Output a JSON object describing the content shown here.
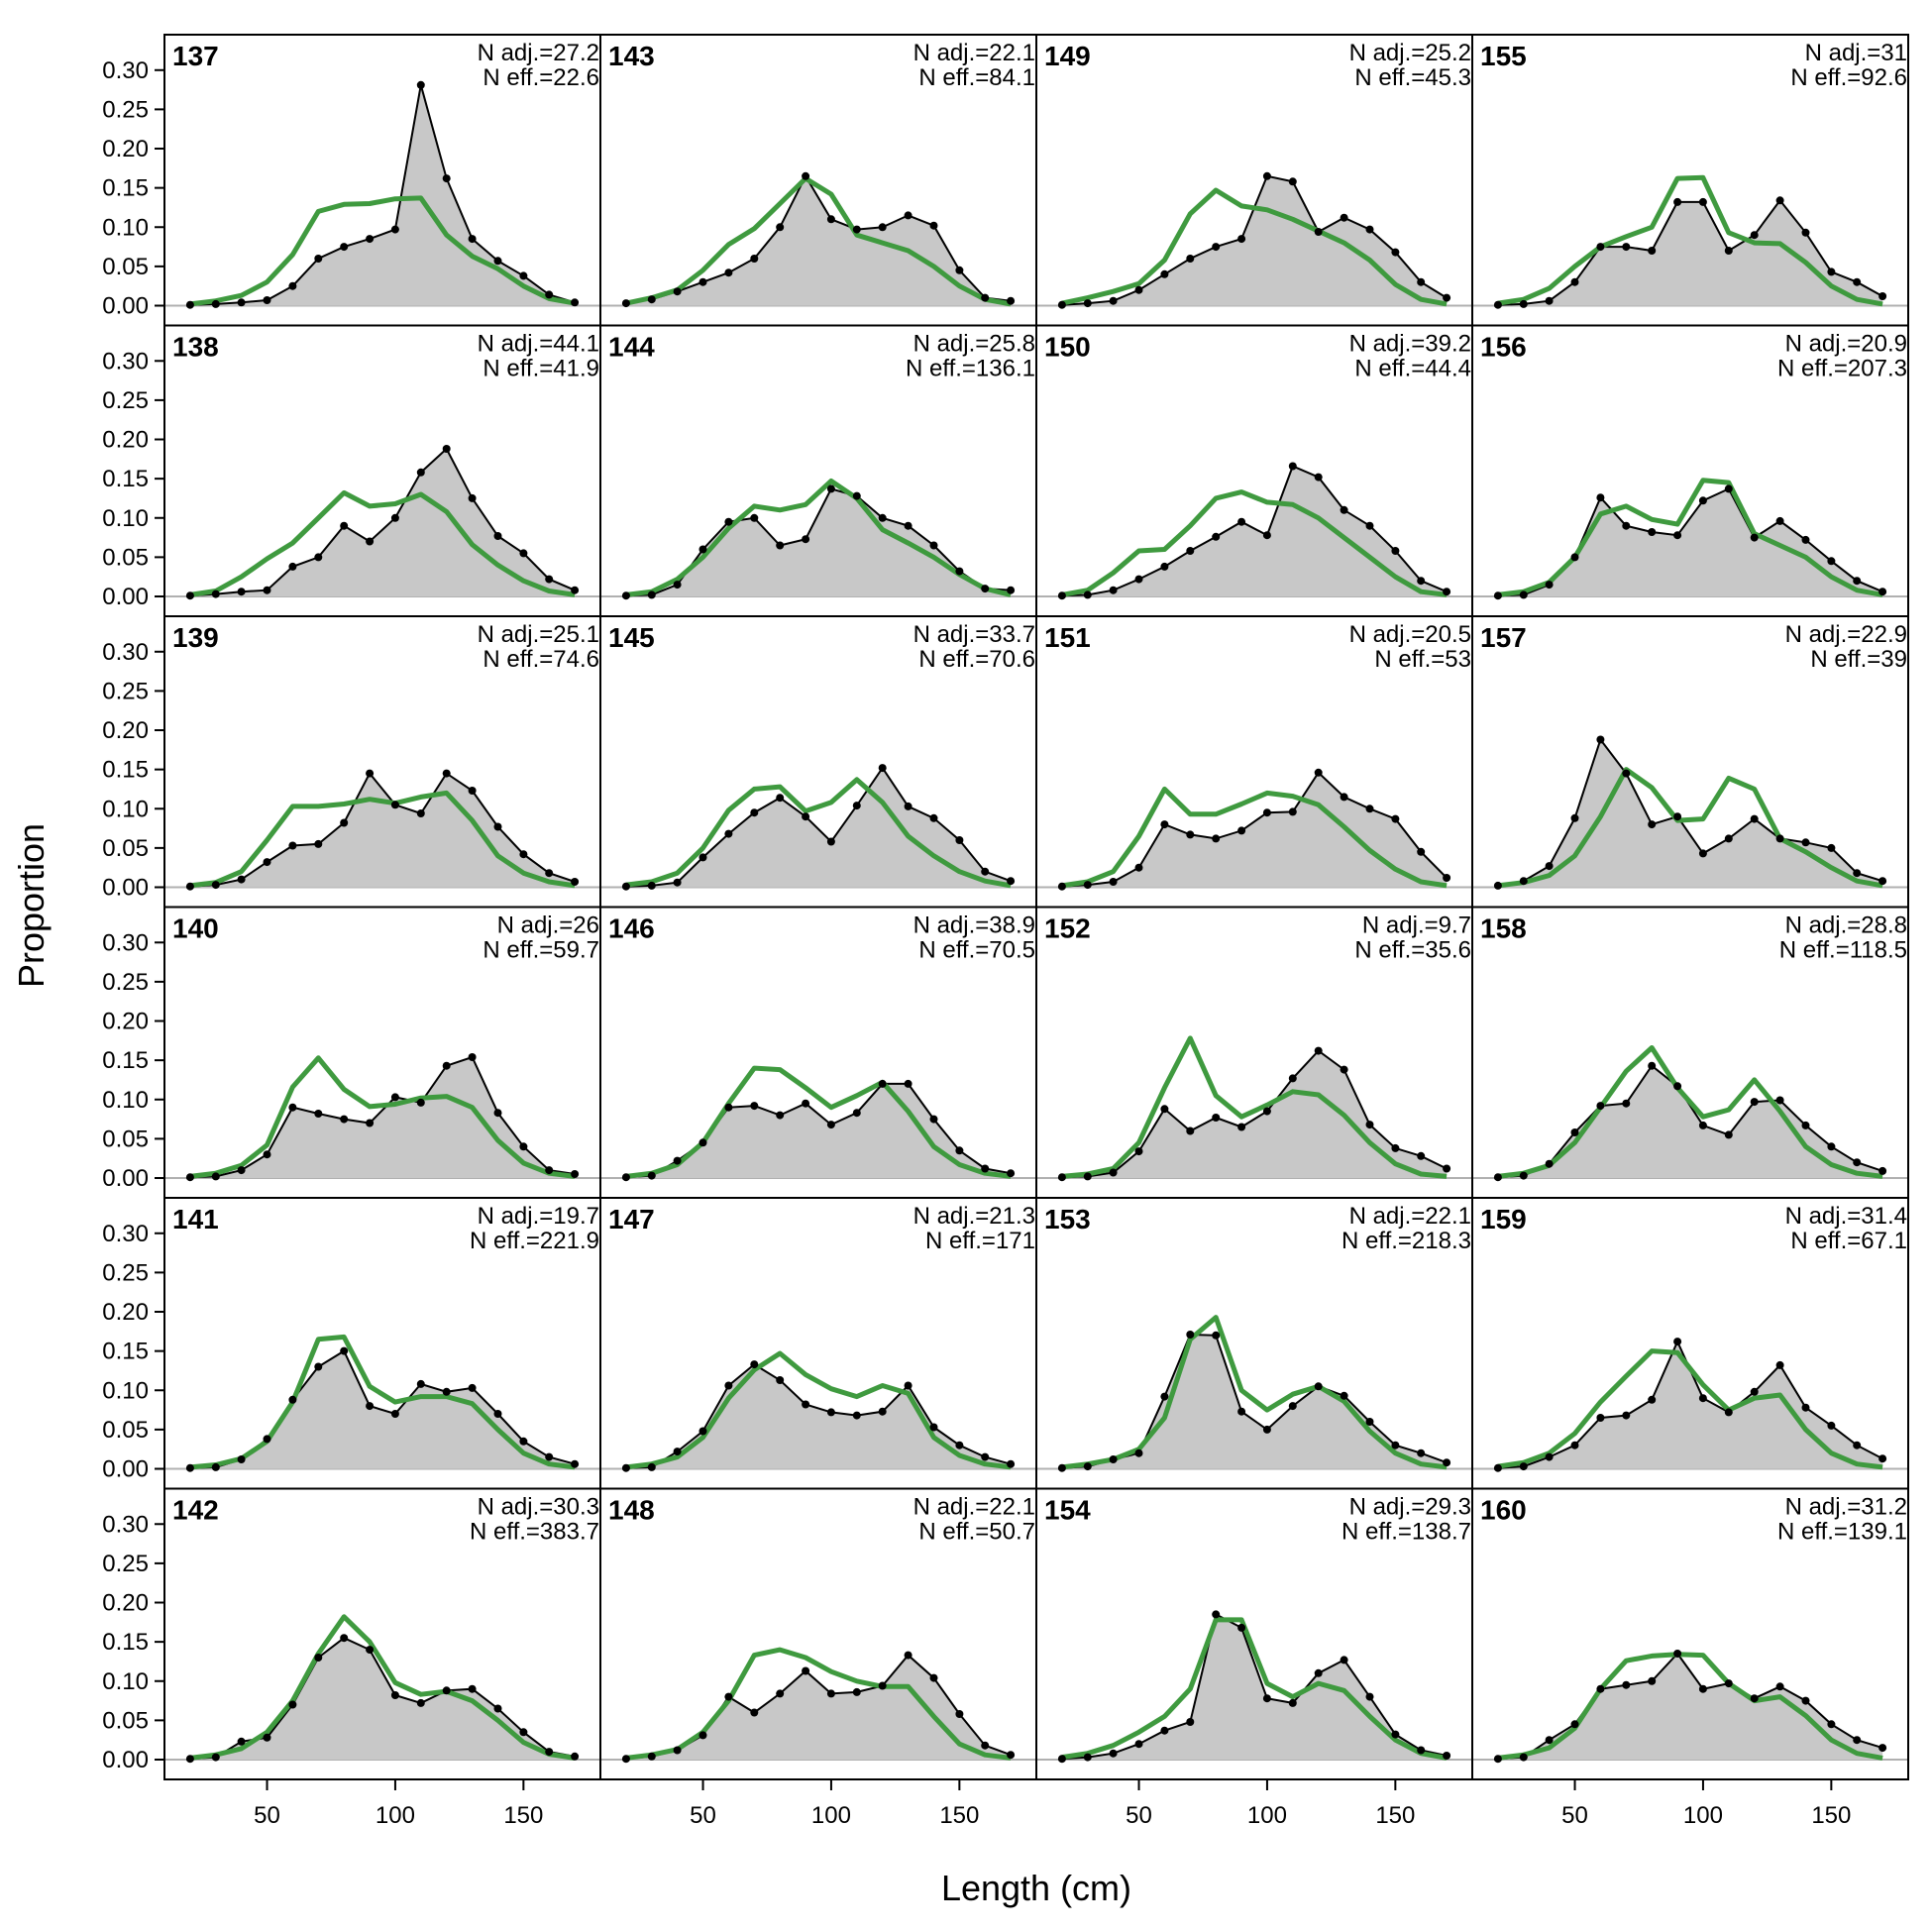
{
  "chart_data": {
    "type": "area",
    "xlabel": "Length (cm)",
    "ylabel": "Proportion",
    "xlim": [
      10,
      180
    ],
    "ylim": [
      0,
      0.33
    ],
    "xticks": [
      50,
      100,
      150
    ],
    "yticks": [
      0.0,
      0.05,
      0.1,
      0.15,
      0.2,
      0.25,
      0.3
    ],
    "ytick_labels": [
      "0.00",
      "0.05",
      "0.10",
      "0.15",
      "0.20",
      "0.25",
      "0.30"
    ],
    "x": [
      20,
      30,
      40,
      50,
      60,
      70,
      80,
      90,
      100,
      110,
      120,
      130,
      140,
      150,
      160,
      170
    ],
    "layout": {
      "rows": 6,
      "cols": 4,
      "order": "column-major"
    },
    "colors": {
      "observed_fill": "#c8c8c8",
      "observed_line": "#000000",
      "expected_line": "#3f9a3f",
      "zero_line": "#b0b0b0"
    },
    "panels": [
      {
        "id": "137",
        "n_adj": "N adj.=27.2",
        "n_eff": "N eff.=22.6",
        "observed": [
          0.001,
          0.002,
          0.004,
          0.007,
          0.025,
          0.06,
          0.075,
          0.085,
          0.097,
          0.281,
          0.162,
          0.085,
          0.057,
          0.038,
          0.014,
          0.004
        ],
        "expected": [
          0.002,
          0.006,
          0.013,
          0.03,
          0.065,
          0.12,
          0.129,
          0.13,
          0.136,
          0.137,
          0.09,
          0.063,
          0.047,
          0.025,
          0.009,
          0.003
        ]
      },
      {
        "id": "138",
        "n_adj": "N adj.=44.1",
        "n_eff": "N eff.=41.9",
        "observed": [
          0.001,
          0.003,
          0.006,
          0.008,
          0.038,
          0.05,
          0.09,
          0.07,
          0.1,
          0.158,
          0.188,
          0.125,
          0.077,
          0.055,
          0.022,
          0.008
        ],
        "expected": [
          0.002,
          0.007,
          0.025,
          0.048,
          0.068,
          0.1,
          0.132,
          0.115,
          0.118,
          0.13,
          0.108,
          0.066,
          0.04,
          0.02,
          0.007,
          0.002
        ]
      },
      {
        "id": "139",
        "n_adj": "N adj.=25.1",
        "n_eff": "N eff.=74.6",
        "observed": [
          0.001,
          0.003,
          0.01,
          0.032,
          0.053,
          0.055,
          0.082,
          0.145,
          0.105,
          0.094,
          0.145,
          0.123,
          0.077,
          0.042,
          0.018,
          0.007
        ],
        "expected": [
          0.002,
          0.006,
          0.02,
          0.06,
          0.103,
          0.103,
          0.106,
          0.112,
          0.107,
          0.115,
          0.12,
          0.085,
          0.04,
          0.018,
          0.007,
          0.002
        ]
      },
      {
        "id": "140",
        "n_adj": "N adj.=26",
        "n_eff": "N eff.=59.7",
        "observed": [
          0.001,
          0.002,
          0.01,
          0.03,
          0.09,
          0.082,
          0.075,
          0.07,
          0.103,
          0.096,
          0.143,
          0.154,
          0.083,
          0.04,
          0.01,
          0.005
        ],
        "expected": [
          0.002,
          0.006,
          0.016,
          0.042,
          0.116,
          0.153,
          0.113,
          0.091,
          0.094,
          0.102,
          0.104,
          0.09,
          0.048,
          0.019,
          0.006,
          0.002
        ]
      },
      {
        "id": "141",
        "n_adj": "N adj.=19.7",
        "n_eff": "N eff.=221.9",
        "observed": [
          0.001,
          0.002,
          0.012,
          0.038,
          0.088,
          0.13,
          0.15,
          0.08,
          0.07,
          0.108,
          0.098,
          0.103,
          0.07,
          0.035,
          0.015,
          0.006
        ],
        "expected": [
          0.002,
          0.005,
          0.013,
          0.035,
          0.085,
          0.165,
          0.168,
          0.105,
          0.085,
          0.092,
          0.092,
          0.083,
          0.05,
          0.02,
          0.006,
          0.002
        ]
      },
      {
        "id": "142",
        "n_adj": "N adj.=30.3",
        "n_eff": "N eff.=383.7",
        "observed": [
          0.001,
          0.003,
          0.023,
          0.028,
          0.07,
          0.13,
          0.155,
          0.14,
          0.082,
          0.072,
          0.088,
          0.09,
          0.065,
          0.035,
          0.01,
          0.004
        ],
        "expected": [
          0.002,
          0.006,
          0.014,
          0.035,
          0.075,
          0.135,
          0.182,
          0.15,
          0.098,
          0.083,
          0.087,
          0.075,
          0.05,
          0.022,
          0.007,
          0.002
        ]
      },
      {
        "id": "143",
        "n_adj": "N adj.=22.1",
        "n_eff": "N eff.=84.1",
        "observed": [
          0.003,
          0.008,
          0.018,
          0.03,
          0.042,
          0.06,
          0.1,
          0.165,
          0.11,
          0.097,
          0.1,
          0.115,
          0.102,
          0.045,
          0.01,
          0.006
        ],
        "expected": [
          0.003,
          0.01,
          0.02,
          0.045,
          0.078,
          0.098,
          0.13,
          0.162,
          0.142,
          0.09,
          0.08,
          0.07,
          0.05,
          0.025,
          0.008,
          0.002
        ]
      },
      {
        "id": "144",
        "n_adj": "N adj.=25.8",
        "n_eff": "N eff.=136.1",
        "observed": [
          0.001,
          0.002,
          0.015,
          0.06,
          0.095,
          0.1,
          0.065,
          0.073,
          0.137,
          0.128,
          0.1,
          0.09,
          0.065,
          0.032,
          0.01,
          0.008
        ],
        "expected": [
          0.002,
          0.006,
          0.022,
          0.05,
          0.087,
          0.115,
          0.11,
          0.117,
          0.147,
          0.125,
          0.085,
          0.068,
          0.05,
          0.028,
          0.01,
          0.002
        ]
      },
      {
        "id": "145",
        "n_adj": "N adj.=33.7",
        "n_eff": "N eff.=70.6",
        "observed": [
          0.001,
          0.002,
          0.006,
          0.038,
          0.068,
          0.095,
          0.114,
          0.09,
          0.058,
          0.104,
          0.152,
          0.103,
          0.088,
          0.06,
          0.02,
          0.008
        ],
        "expected": [
          0.003,
          0.007,
          0.018,
          0.05,
          0.098,
          0.125,
          0.128,
          0.097,
          0.108,
          0.137,
          0.108,
          0.065,
          0.04,
          0.02,
          0.008,
          0.002
        ]
      },
      {
        "id": "146",
        "n_adj": "N adj.=38.9",
        "n_eff": "N eff.=70.5",
        "observed": [
          0.001,
          0.003,
          0.022,
          0.045,
          0.09,
          0.092,
          0.08,
          0.095,
          0.068,
          0.083,
          0.12,
          0.12,
          0.075,
          0.035,
          0.012,
          0.006
        ],
        "expected": [
          0.002,
          0.006,
          0.017,
          0.045,
          0.095,
          0.14,
          0.138,
          0.115,
          0.09,
          0.105,
          0.122,
          0.085,
          0.04,
          0.017,
          0.006,
          0.002
        ]
      },
      {
        "id": "147",
        "n_adj": "N adj.=21.3",
        "n_eff": "N eff.=171",
        "observed": [
          0.001,
          0.002,
          0.022,
          0.048,
          0.106,
          0.133,
          0.113,
          0.082,
          0.072,
          0.068,
          0.073,
          0.106,
          0.053,
          0.03,
          0.015,
          0.006
        ],
        "expected": [
          0.002,
          0.006,
          0.015,
          0.04,
          0.09,
          0.126,
          0.147,
          0.12,
          0.102,
          0.092,
          0.106,
          0.096,
          0.04,
          0.017,
          0.006,
          0.002
        ]
      },
      {
        "id": "148",
        "n_adj": "N adj.=22.1",
        "n_eff": "N eff.=50.7",
        "observed": [
          0.001,
          0.004,
          0.012,
          0.031,
          0.08,
          0.06,
          0.084,
          0.113,
          0.084,
          0.086,
          0.094,
          0.133,
          0.104,
          0.058,
          0.018,
          0.006
        ],
        "expected": [
          0.002,
          0.006,
          0.013,
          0.035,
          0.075,
          0.133,
          0.14,
          0.13,
          0.112,
          0.1,
          0.093,
          0.093,
          0.055,
          0.02,
          0.006,
          0.002
        ]
      },
      {
        "id": "149",
        "n_adj": "N adj.=25.2",
        "n_eff": "N eff.=45.3",
        "observed": [
          0.001,
          0.003,
          0.006,
          0.02,
          0.04,
          0.06,
          0.075,
          0.085,
          0.165,
          0.158,
          0.094,
          0.112,
          0.097,
          0.068,
          0.03,
          0.01
        ],
        "expected": [
          0.003,
          0.01,
          0.018,
          0.028,
          0.058,
          0.117,
          0.147,
          0.127,
          0.122,
          0.11,
          0.095,
          0.08,
          0.058,
          0.027,
          0.008,
          0.002
        ]
      },
      {
        "id": "150",
        "n_adj": "N adj.=39.2",
        "n_eff": "N eff.=44.4",
        "observed": [
          0.001,
          0.002,
          0.008,
          0.022,
          0.038,
          0.058,
          0.076,
          0.095,
          0.078,
          0.166,
          0.152,
          0.11,
          0.09,
          0.058,
          0.02,
          0.006
        ],
        "expected": [
          0.002,
          0.008,
          0.03,
          0.058,
          0.06,
          0.09,
          0.125,
          0.133,
          0.12,
          0.117,
          0.1,
          0.075,
          0.05,
          0.025,
          0.006,
          0.002
        ]
      },
      {
        "id": "151",
        "n_adj": "N adj.=20.5",
        "n_eff": "N eff.=53",
        "observed": [
          0.001,
          0.003,
          0.007,
          0.025,
          0.08,
          0.067,
          0.062,
          0.072,
          0.095,
          0.096,
          0.146,
          0.115,
          0.1,
          0.087,
          0.045,
          0.012
        ],
        "expected": [
          0.002,
          0.007,
          0.02,
          0.065,
          0.125,
          0.093,
          0.093,
          0.106,
          0.12,
          0.116,
          0.105,
          0.077,
          0.047,
          0.023,
          0.007,
          0.002
        ]
      },
      {
        "id": "152",
        "n_adj": "N adj.=9.7",
        "n_eff": "N eff.=35.6",
        "observed": [
          0.001,
          0.002,
          0.007,
          0.034,
          0.088,
          0.06,
          0.077,
          0.065,
          0.085,
          0.127,
          0.162,
          0.138,
          0.068,
          0.038,
          0.028,
          0.012
        ],
        "expected": [
          0.002,
          0.005,
          0.012,
          0.045,
          0.115,
          0.178,
          0.105,
          0.078,
          0.093,
          0.11,
          0.106,
          0.08,
          0.045,
          0.018,
          0.005,
          0.002
        ]
      },
      {
        "id": "153",
        "n_adj": "N adj.=22.1",
        "n_eff": "N eff.=218.3",
        "observed": [
          0.001,
          0.003,
          0.012,
          0.02,
          0.092,
          0.171,
          0.17,
          0.073,
          0.05,
          0.08,
          0.105,
          0.093,
          0.06,
          0.03,
          0.02,
          0.008
        ],
        "expected": [
          0.002,
          0.006,
          0.012,
          0.025,
          0.065,
          0.165,
          0.193,
          0.1,
          0.075,
          0.095,
          0.105,
          0.086,
          0.048,
          0.02,
          0.006,
          0.002
        ]
      },
      {
        "id": "154",
        "n_adj": "N adj.=29.3",
        "n_eff": "N eff.=138.7",
        "observed": [
          0.001,
          0.003,
          0.008,
          0.02,
          0.037,
          0.048,
          0.185,
          0.168,
          0.078,
          0.072,
          0.11,
          0.127,
          0.08,
          0.032,
          0.012,
          0.005
        ],
        "expected": [
          0.003,
          0.008,
          0.018,
          0.035,
          0.055,
          0.09,
          0.178,
          0.178,
          0.097,
          0.08,
          0.097,
          0.088,
          0.055,
          0.025,
          0.008,
          0.002
        ]
      },
      {
        "id": "155",
        "n_adj": "N adj.=31",
        "n_eff": "N eff.=92.6",
        "observed": [
          0.001,
          0.002,
          0.006,
          0.03,
          0.075,
          0.075,
          0.07,
          0.132,
          0.132,
          0.07,
          0.09,
          0.134,
          0.093,
          0.043,
          0.03,
          0.012
        ],
        "expected": [
          0.003,
          0.008,
          0.022,
          0.05,
          0.075,
          0.088,
          0.1,
          0.162,
          0.163,
          0.093,
          0.08,
          0.079,
          0.055,
          0.025,
          0.008,
          0.002
        ]
      },
      {
        "id": "156",
        "n_adj": "N adj.=20.9",
        "n_eff": "N eff.=207.3",
        "observed": [
          0.001,
          0.002,
          0.015,
          0.05,
          0.126,
          0.09,
          0.082,
          0.078,
          0.122,
          0.137,
          0.075,
          0.096,
          0.072,
          0.045,
          0.02,
          0.006
        ],
        "expected": [
          0.002,
          0.006,
          0.018,
          0.05,
          0.105,
          0.115,
          0.098,
          0.092,
          0.148,
          0.145,
          0.08,
          0.065,
          0.05,
          0.025,
          0.008,
          0.002
        ]
      },
      {
        "id": "157",
        "n_adj": "N adj.=22.9",
        "n_eff": "N eff.=39",
        "observed": [
          0.002,
          0.008,
          0.027,
          0.088,
          0.188,
          0.145,
          0.08,
          0.09,
          0.043,
          0.062,
          0.087,
          0.062,
          0.057,
          0.05,
          0.018,
          0.008
        ],
        "expected": [
          0.002,
          0.006,
          0.015,
          0.04,
          0.09,
          0.15,
          0.127,
          0.085,
          0.087,
          0.139,
          0.125,
          0.062,
          0.045,
          0.025,
          0.008,
          0.002
        ]
      },
      {
        "id": "158",
        "n_adj": "N adj.=28.8",
        "n_eff": "N eff.=118.5",
        "observed": [
          0.001,
          0.003,
          0.018,
          0.058,
          0.092,
          0.095,
          0.143,
          0.117,
          0.067,
          0.055,
          0.097,
          0.099,
          0.067,
          0.04,
          0.02,
          0.009
        ],
        "expected": [
          0.002,
          0.006,
          0.016,
          0.045,
          0.09,
          0.136,
          0.166,
          0.115,
          0.078,
          0.087,
          0.125,
          0.085,
          0.04,
          0.017,
          0.006,
          0.002
        ]
      },
      {
        "id": "159",
        "n_adj": "N adj.=31.4",
        "n_eff": "N eff.=67.1",
        "observed": [
          0.001,
          0.003,
          0.015,
          0.03,
          0.065,
          0.068,
          0.088,
          0.162,
          0.09,
          0.072,
          0.098,
          0.132,
          0.078,
          0.055,
          0.03,
          0.013
        ],
        "expected": [
          0.003,
          0.008,
          0.02,
          0.045,
          0.085,
          0.118,
          0.15,
          0.148,
          0.107,
          0.075,
          0.09,
          0.094,
          0.05,
          0.02,
          0.006,
          0.002
        ]
      },
      {
        "id": "160",
        "n_adj": "N adj.=31.2",
        "n_eff": "N eff.=139.1",
        "observed": [
          0.001,
          0.003,
          0.025,
          0.045,
          0.09,
          0.095,
          0.1,
          0.135,
          0.09,
          0.097,
          0.078,
          0.093,
          0.075,
          0.045,
          0.025,
          0.015
        ],
        "expected": [
          0.002,
          0.006,
          0.015,
          0.04,
          0.09,
          0.126,
          0.132,
          0.134,
          0.133,
          0.097,
          0.075,
          0.08,
          0.056,
          0.025,
          0.008,
          0.002
        ]
      }
    ]
  }
}
